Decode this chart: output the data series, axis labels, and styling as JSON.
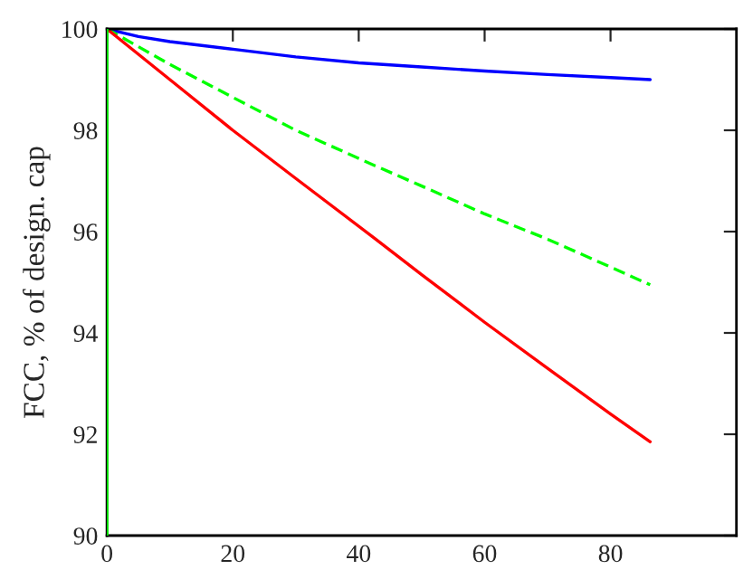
{
  "chart_data": {
    "type": "line",
    "ylabel": "FCC, % of design. cap",
    "xlim": [
      0,
      100
    ],
    "ylim": [
      90,
      100
    ],
    "xticks": [
      0,
      20,
      40,
      60,
      80
    ],
    "yticks": [
      90,
      92,
      94,
      96,
      98,
      100
    ],
    "grid": false,
    "legend": false,
    "marker": "none",
    "ref_lines": [
      {
        "axis": "x",
        "value": 0,
        "color": "#00ff00",
        "line_style": "solid"
      }
    ],
    "series": [
      {
        "color": "#0000ff",
        "line_style": "solid",
        "x": [
          0,
          5,
          10,
          20,
          30,
          40,
          50,
          60,
          70,
          80,
          86.3
        ],
        "values": [
          100,
          99.85,
          99.75,
          99.6,
          99.45,
          99.33,
          99.25,
          99.17,
          99.1,
          99.04,
          99.0
        ]
      },
      {
        "color": "#00ff00",
        "line_style": "dashed",
        "x": [
          0,
          10,
          20,
          30,
          42.6,
          50,
          60,
          70,
          80,
          86.3
        ],
        "values": [
          100,
          99.3,
          98.65,
          98.0,
          97.3,
          96.9,
          96.35,
          95.85,
          95.3,
          94.95
        ]
      },
      {
        "color": "#ff0000",
        "line_style": "solid",
        "x": [
          0,
          10,
          20,
          30,
          42.6,
          50,
          60,
          70,
          80,
          86.3
        ],
        "values": [
          100,
          99.0,
          98.0,
          97.05,
          95.86,
          95.15,
          94.21,
          93.3,
          92.4,
          91.85
        ]
      }
    ]
  }
}
